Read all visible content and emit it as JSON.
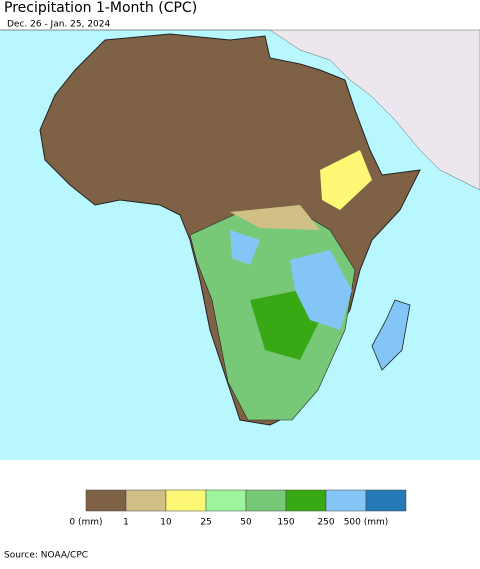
{
  "header": {
    "title": "Precipitation 1-Month (CPC)",
    "subtitle": "Dec. 26 - Jan. 25, 2024"
  },
  "legend": {
    "items": [
      {
        "label": "0 (mm)",
        "color": "#7f6245"
      },
      {
        "label": "1",
        "color": "#d1c086"
      },
      {
        "label": "10",
        "color": "#fdf977"
      },
      {
        "label": "25",
        "color": "#9cf49b"
      },
      {
        "label": "50",
        "color": "#78c977"
      },
      {
        "label": "150",
        "color": "#38a815"
      },
      {
        "label": "250",
        "color": "#83c5f6"
      },
      {
        "label": "500 (mm)",
        "color": "#2479b6"
      }
    ]
  },
  "footer": {
    "source": "Source: NOAA/CPC"
  }
}
